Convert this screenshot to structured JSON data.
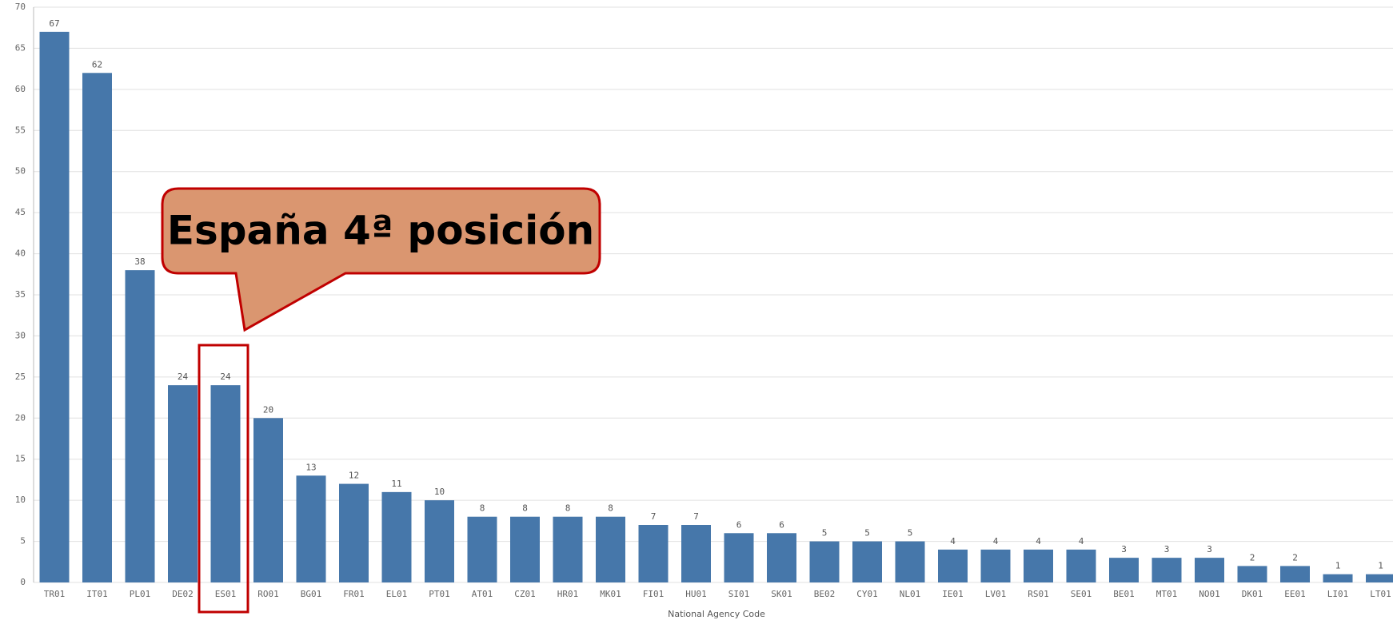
{
  "chart_data": {
    "type": "bar",
    "categories": [
      "TR01",
      "IT01",
      "PL01",
      "DE02",
      "ES01",
      "RO01",
      "BG01",
      "FR01",
      "EL01",
      "PT01",
      "AT01",
      "CZ01",
      "HR01",
      "MK01",
      "FI01",
      "HU01",
      "SI01",
      "SK01",
      "BE02",
      "CY01",
      "NL01",
      "IE01",
      "LV01",
      "RS01",
      "SE01",
      "BE01",
      "MT01",
      "NO01",
      "DK01",
      "EE01",
      "LI01",
      "LT01"
    ],
    "values": [
      67,
      62,
      38,
      24,
      24,
      20,
      13,
      12,
      11,
      10,
      8,
      8,
      8,
      8,
      7,
      7,
      6,
      6,
      5,
      5,
      5,
      4,
      4,
      4,
      4,
      3,
      3,
      3,
      2,
      2,
      1,
      1
    ],
    "color": "#4677aa",
    "x_label": "National Agency Code",
    "ylim": [
      0,
      70
    ],
    "yticks": [
      0,
      5,
      10,
      15,
      20,
      25,
      30,
      35,
      40,
      45,
      50,
      55,
      60,
      65,
      70
    ],
    "grid": true,
    "annotation": "España 4ª posición"
  }
}
